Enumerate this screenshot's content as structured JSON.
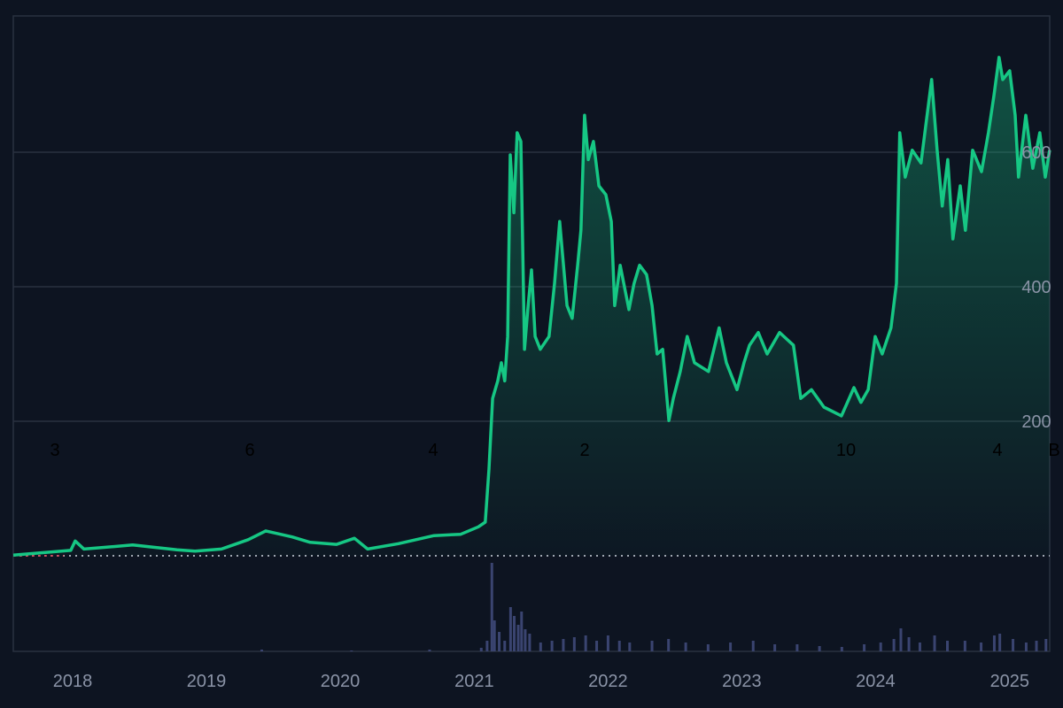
{
  "chart_data": {
    "type": "area",
    "title": "",
    "xlabel": "",
    "ylabel": "",
    "ylim": [
      0,
      750
    ],
    "grid": true,
    "legend": "none",
    "x_ticks": [
      "2018",
      "2019",
      "2020",
      "2021",
      "2022",
      "2023",
      "2024",
      "2025"
    ],
    "y_ticks": [
      200,
      400,
      600
    ],
    "y_axis_position": "right",
    "annotations": [
      "3",
      "6",
      "4",
      "2",
      "10",
      "4",
      "B"
    ],
    "colors": {
      "line": "#16c784",
      "volume": "#3a4470",
      "background": "#0d1421",
      "grid": "#2a3140"
    },
    "series": [
      {
        "values": [
          [
            "2017-07-23",
            1
          ],
          [
            "2017-12-27",
            8
          ],
          [
            "2018-01-08",
            22
          ],
          [
            "2018-02-01",
            10
          ],
          [
            "2018-06-14",
            16
          ],
          [
            "2018-10-13",
            9
          ],
          [
            "2018-12-01",
            7
          ],
          [
            "2019-02-11",
            10
          ],
          [
            "2019-04-25",
            24
          ],
          [
            "2019-06-12",
            37
          ],
          [
            "2019-08-23",
            28
          ],
          [
            "2019-10-11",
            20
          ],
          [
            "2019-12-22",
            17
          ],
          [
            "2020-02-09",
            26
          ],
          [
            "2020-03-16",
            10
          ],
          [
            "2020-06-08",
            18
          ],
          [
            "2020-09-13",
            30
          ],
          [
            "2020-11-25",
            32
          ],
          [
            "2021-01-12",
            43
          ],
          [
            "2021-01-31",
            50
          ],
          [
            "2021-02-10",
            129
          ],
          [
            "2021-02-20",
            234
          ],
          [
            "2021-03-06",
            260
          ],
          [
            "2021-03-16",
            287
          ],
          [
            "2021-03-25",
            260
          ],
          [
            "2021-04-02",
            326
          ],
          [
            "2021-04-09",
            596
          ],
          [
            "2021-04-19",
            510
          ],
          [
            "2021-04-28",
            629
          ],
          [
            "2021-05-08",
            616
          ],
          [
            "2021-05-18",
            307
          ],
          [
            "2021-05-27",
            366
          ],
          [
            "2021-06-06",
            425
          ],
          [
            "2021-06-16",
            326
          ],
          [
            "2021-06-30",
            307
          ],
          [
            "2021-07-24",
            326
          ],
          [
            "2021-08-08",
            405
          ],
          [
            "2021-08-22",
            497
          ],
          [
            "2021-09-11",
            372
          ],
          [
            "2021-09-25",
            353
          ],
          [
            "2021-10-10",
            432
          ],
          [
            "2021-10-19",
            484
          ],
          [
            "2021-10-29",
            655
          ],
          [
            "2021-11-08",
            589
          ],
          [
            "2021-11-22",
            616
          ],
          [
            "2021-12-07",
            550
          ],
          [
            "2021-12-26",
            537
          ],
          [
            "2022-01-10",
            497
          ],
          [
            "2022-01-19",
            372
          ],
          [
            "2022-02-03",
            432
          ],
          [
            "2022-02-27",
            366
          ],
          [
            "2022-03-13",
            405
          ],
          [
            "2022-03-28",
            432
          ],
          [
            "2022-04-16",
            418
          ],
          [
            "2022-05-01",
            372
          ],
          [
            "2022-05-15",
            300
          ],
          [
            "2022-05-30",
            307
          ],
          [
            "2022-06-16",
            201
          ],
          [
            "2022-06-28",
            234
          ],
          [
            "2022-07-17",
            274
          ],
          [
            "2022-08-05",
            326
          ],
          [
            "2022-08-25",
            287
          ],
          [
            "2022-10-02",
            274
          ],
          [
            "2022-10-31",
            339
          ],
          [
            "2022-11-20",
            287
          ],
          [
            "2022-12-19",
            247
          ],
          [
            "2023-01-07",
            287
          ],
          [
            "2023-01-22",
            313
          ],
          [
            "2023-02-15",
            332
          ],
          [
            "2023-03-11",
            300
          ],
          [
            "2023-04-14",
            332
          ],
          [
            "2023-05-22",
            313
          ],
          [
            "2023-06-11",
            234
          ],
          [
            "2023-07-10",
            247
          ],
          [
            "2023-08-13",
            221
          ],
          [
            "2023-09-30",
            208
          ],
          [
            "2023-11-03",
            250
          ],
          [
            "2023-11-22",
            228
          ],
          [
            "2023-12-12",
            247
          ],
          [
            "2023-12-31",
            326
          ],
          [
            "2024-01-19",
            300
          ],
          [
            "2024-02-12",
            339
          ],
          [
            "2024-02-27",
            405
          ],
          [
            "2024-03-07",
            629
          ],
          [
            "2024-03-22",
            563
          ],
          [
            "2024-04-10",
            603
          ],
          [
            "2024-05-04",
            584
          ],
          [
            "2024-06-02",
            708
          ],
          [
            "2024-06-17",
            603
          ],
          [
            "2024-07-01",
            520
          ],
          [
            "2024-07-16",
            589
          ],
          [
            "2024-07-30",
            471
          ],
          [
            "2024-08-19",
            550
          ],
          [
            "2024-09-02",
            484
          ],
          [
            "2024-09-22",
            603
          ],
          [
            "2024-10-16",
            571
          ],
          [
            "2024-11-04",
            629
          ],
          [
            "2024-11-19",
            684
          ],
          [
            "2024-12-03",
            741
          ],
          [
            "2024-12-13",
            708
          ],
          [
            "2025-01-01",
            721
          ],
          [
            "2025-01-16",
            655
          ],
          [
            "2025-01-25",
            563
          ],
          [
            "2025-02-14",
            655
          ],
          [
            "2025-03-05",
            576
          ],
          [
            "2025-03-24",
            629
          ],
          [
            "2025-04-08",
            563
          ],
          [
            "2025-04-20",
            603
          ]
        ]
      },
      {
        "name_hidden": true,
        "kind": "volume",
        "values": [
          [
            "2019-06-01",
            2
          ],
          [
            "2020-02-01",
            1
          ],
          [
            "2020-09-01",
            2
          ],
          [
            "2021-01-20",
            4
          ],
          [
            "2021-02-05",
            12
          ],
          [
            "2021-02-18",
            100
          ],
          [
            "2021-02-25",
            35
          ],
          [
            "2021-03-10",
            22
          ],
          [
            "2021-03-25",
            12
          ],
          [
            "2021-04-10",
            50
          ],
          [
            "2021-04-20",
            40
          ],
          [
            "2021-05-01",
            30
          ],
          [
            "2021-05-10",
            45
          ],
          [
            "2021-05-20",
            25
          ],
          [
            "2021-06-01",
            20
          ],
          [
            "2021-07-01",
            10
          ],
          [
            "2021-08-01",
            12
          ],
          [
            "2021-09-01",
            14
          ],
          [
            "2021-10-01",
            16
          ],
          [
            "2021-11-01",
            18
          ],
          [
            "2021-12-01",
            12
          ],
          [
            "2022-01-01",
            18
          ],
          [
            "2022-02-01",
            12
          ],
          [
            "2022-03-01",
            10
          ],
          [
            "2022-05-01",
            12
          ],
          [
            "2022-06-15",
            14
          ],
          [
            "2022-08-01",
            10
          ],
          [
            "2022-10-01",
            8
          ],
          [
            "2022-12-01",
            10
          ],
          [
            "2023-02-01",
            12
          ],
          [
            "2023-04-01",
            8
          ],
          [
            "2023-06-01",
            8
          ],
          [
            "2023-08-01",
            6
          ],
          [
            "2023-10-01",
            5
          ],
          [
            "2023-12-01",
            8
          ],
          [
            "2024-01-15",
            10
          ],
          [
            "2024-02-20",
            14
          ],
          [
            "2024-03-10",
            26
          ],
          [
            "2024-04-01",
            16
          ],
          [
            "2024-05-01",
            10
          ],
          [
            "2024-06-10",
            18
          ],
          [
            "2024-07-15",
            12
          ],
          [
            "2024-09-01",
            12
          ],
          [
            "2024-10-15",
            10
          ],
          [
            "2024-11-20",
            18
          ],
          [
            "2024-12-05",
            20
          ],
          [
            "2025-01-10",
            14
          ],
          [
            "2025-02-15",
            10
          ],
          [
            "2025-03-15",
            12
          ],
          [
            "2025-04-10",
            14
          ]
        ]
      }
    ]
  }
}
